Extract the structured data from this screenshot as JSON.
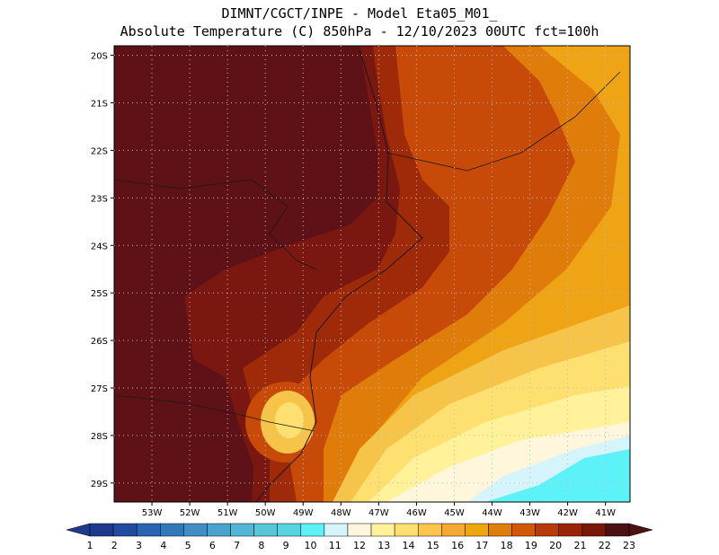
{
  "header": {
    "line1": "DIMNT/CGCT/INPE -  Model Eta05_M01_",
    "line2": "Absolute Temperature (C) 850hPa -  12/10/2023 00UTC fct=100h"
  },
  "map": {
    "lat_labels": [
      "20S",
      "21S",
      "22S",
      "23S",
      "24S",
      "25S",
      "26S",
      "27S",
      "28S",
      "29S"
    ],
    "lon_labels": [
      "53W",
      "52W",
      "51W",
      "50W",
      "49W",
      "48W",
      "47W",
      "46W",
      "45W",
      "44W",
      "43W",
      "42W",
      "41W"
    ],
    "lat_values": [
      -20,
      -21,
      -22,
      -23,
      -24,
      -25,
      -26,
      -27,
      -28,
      -29
    ],
    "lon_values": [
      -53,
      -52,
      -51,
      -50,
      -49,
      -48,
      -47,
      -46,
      -45,
      -44,
      -43,
      -42,
      -41
    ]
  },
  "legend": {
    "labels": [
      "1",
      "2",
      "3",
      "4",
      "5",
      "6",
      "7",
      "8",
      "9",
      "10",
      "11",
      "12",
      "13",
      "14",
      "15",
      "16",
      "17",
      "18",
      "19",
      "20",
      "21",
      "22",
      "23"
    ],
    "colors": [
      "#1f3a8c",
      "#214aa0",
      "#2a62b4",
      "#3478bc",
      "#3f8fc6",
      "#48a4cf",
      "#52b6d6",
      "#56c6d8",
      "#56d4e0",
      "#5cf2f8",
      "#d6f4fb",
      "#fff6dc",
      "#fff29a",
      "#fee070",
      "#fdc54e",
      "#f6a832",
      "#eda510",
      "#e07e0c",
      "#d05808",
      "#b83a0a",
      "#9a2408",
      "#791806",
      "#4c1112"
    ]
  }
}
